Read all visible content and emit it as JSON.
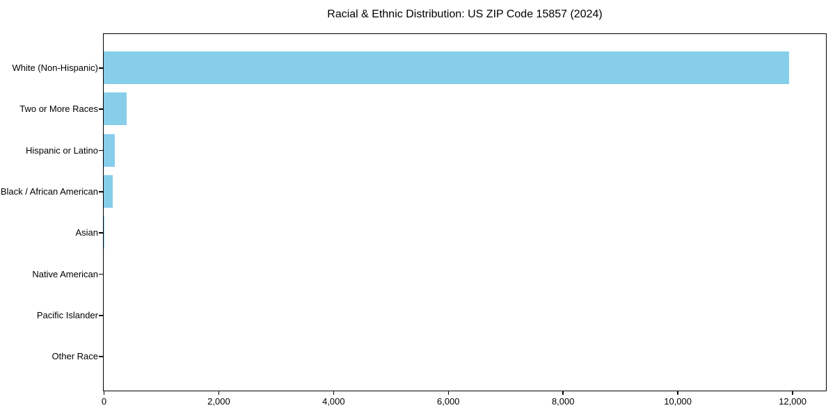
{
  "chart_data": {
    "type": "bar",
    "orientation": "horizontal",
    "title": "Racial & Ethnic Distribution: US ZIP Code 15857 (2024)",
    "categories": [
      "White (Non-Hispanic)",
      "Two or More Races",
      "Hispanic or Latino",
      "Black / African American",
      "Asian",
      "Native American",
      "Pacific Islander",
      "Other Race"
    ],
    "values": [
      11950,
      400,
      195,
      160,
      12,
      0,
      0,
      0
    ],
    "xlabel": "",
    "ylabel": "",
    "xlim": [
      0,
      12575
    ],
    "x_ticks": [
      0,
      2000,
      4000,
      6000,
      8000,
      10000,
      12000
    ],
    "x_tick_labels": [
      "0",
      "2,000",
      "4,000",
      "6,000",
      "8,000",
      "10,000",
      "12,000"
    ],
    "bar_color": "#87CEEB",
    "axis_color": "#000000",
    "background_color": "#FFFFFF",
    "grid": false,
    "legend_position": "none"
  }
}
